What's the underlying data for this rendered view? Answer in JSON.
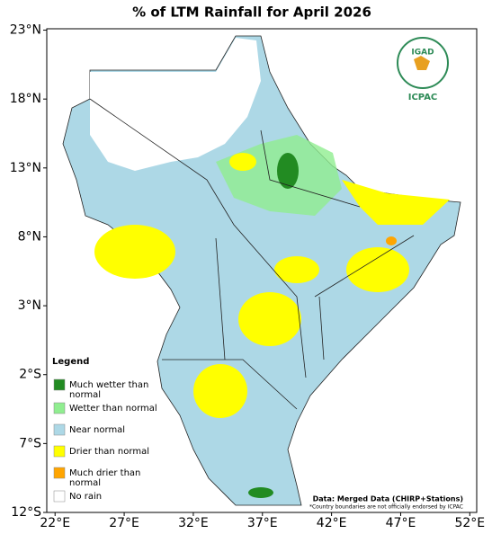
{
  "title": "% of LTM Rainfall for April 2026",
  "map": {
    "xlim": [
      21.4,
      52.5
    ],
    "ylim": [
      -12,
      23.1
    ],
    "xticks": [
      {
        "value": 22,
        "label": "22°E"
      },
      {
        "value": 27,
        "label": "27°E"
      },
      {
        "value": 32,
        "label": "32°E"
      },
      {
        "value": 37,
        "label": "37°E"
      },
      {
        "value": 42,
        "label": "42°E"
      },
      {
        "value": 47,
        "label": "47°E"
      },
      {
        "value": 52,
        "label": "52°E"
      }
    ],
    "yticks": [
      {
        "value": 23,
        "label": "23°N"
      },
      {
        "value": 18,
        "label": "18°N"
      },
      {
        "value": 13,
        "label": "13°N"
      },
      {
        "value": 8,
        "label": "8°N"
      },
      {
        "value": 3,
        "label": "3°N"
      },
      {
        "value": -2,
        "label": "2°S"
      },
      {
        "value": -7,
        "label": "7°S"
      },
      {
        "value": -12,
        "label": "12°S"
      }
    ]
  },
  "legend": {
    "title": "Legend",
    "entries": [
      {
        "label": "Much wetter than normal",
        "color": "#228b22"
      },
      {
        "label": "Wetter than normal",
        "color": "#90ee90"
      },
      {
        "label": "Near normal",
        "color": "#add8e6"
      },
      {
        "label": "Drier than normal",
        "color": "#ffff00"
      },
      {
        "label": "Much drier than normal",
        "color": "#ffa500"
      },
      {
        "label": "No rain",
        "color": "#ffffff"
      }
    ]
  },
  "logo": {
    "name": "IGAD",
    "org": "ICPAC"
  },
  "source": "Data: Merged Data (CHIRP+Stations)",
  "note": "*Country boundaries are not officially endorsed by ICPAC"
}
